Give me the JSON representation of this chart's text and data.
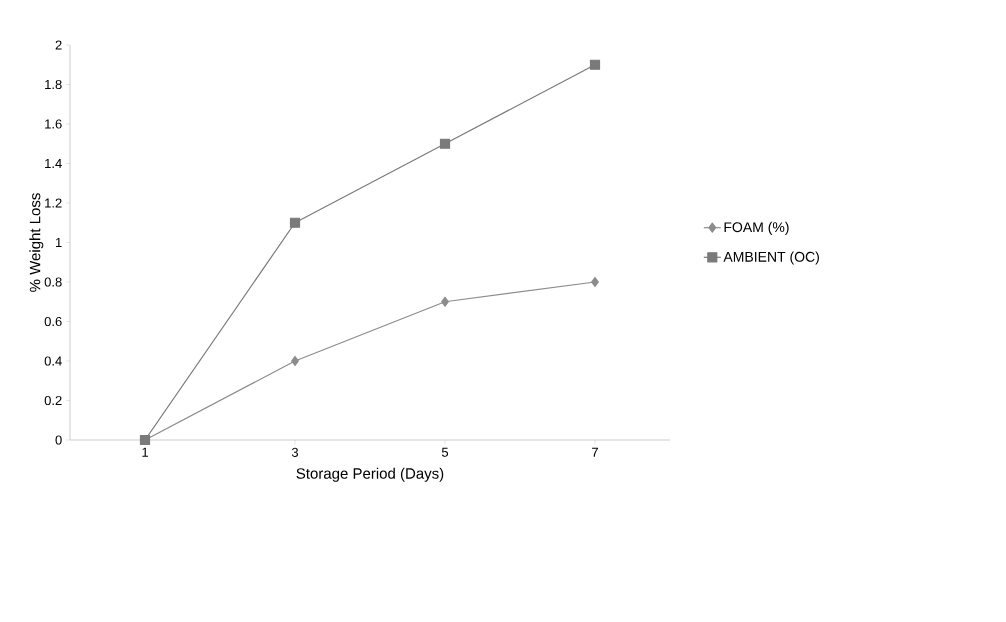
{
  "chart_data": {
    "type": "line",
    "xlabel": "Storage Period (Days)",
    "ylabel": "% Weight  Loss",
    "categories": [
      "1",
      "3",
      "5",
      "7"
    ],
    "series": [
      {
        "name": "FOAM (%)",
        "color": "#8c8c8c",
        "marker": "diamond",
        "values": [
          0,
          0.4,
          0.7,
          0.8
        ]
      },
      {
        "name": "AMBIENT (OC)",
        "color": "#7a7a7a",
        "marker": "square",
        "values": [
          0,
          1.1,
          1.5,
          1.9
        ]
      }
    ],
    "ylim": [
      0,
      2
    ],
    "yticks": [
      0,
      0.2,
      0.4,
      0.6,
      0.8,
      1,
      1.2,
      1.4,
      1.6,
      1.8,
      2
    ],
    "legend": "right",
    "grid": false
  }
}
